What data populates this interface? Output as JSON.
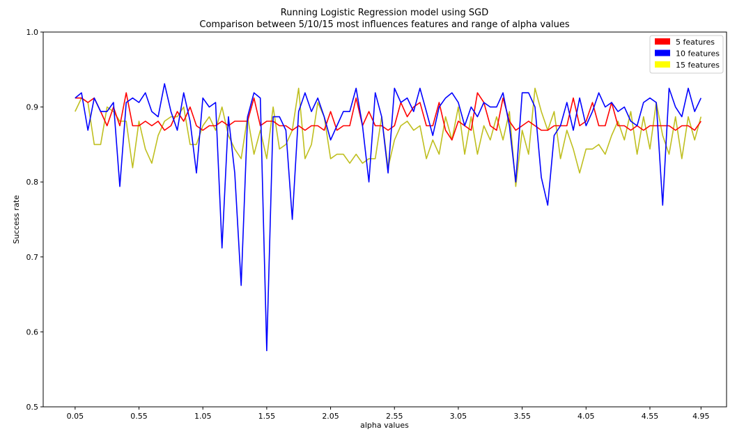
{
  "chart_data": {
    "type": "line",
    "title": "Running Logistic Regression model using SGD",
    "subtitle": "Comparison between 5/10/15 most influences features and range of alpha values",
    "xlabel": "alpha values",
    "ylabel": "Success rate",
    "xlim": [
      -0.2,
      5.15
    ],
    "ylim": [
      0.5,
      1.0
    ],
    "x_ticks": [
      0.05,
      0.55,
      1.05,
      1.55,
      2.05,
      2.55,
      3.05,
      3.55,
      4.05,
      4.55,
      4.95
    ],
    "x_tick_labels": [
      "0.05",
      "0.55",
      "1.05",
      "1.55",
      "2.05",
      "2.55",
      "3.05",
      "3.55",
      "4.05",
      "4.55",
      "4.95"
    ],
    "y_ticks": [
      0.5,
      0.6,
      0.7,
      0.8,
      0.9,
      1.0
    ],
    "y_tick_labels": [
      "0.5",
      "0.6",
      "0.7",
      "0.8",
      "0.9",
      "1.0"
    ],
    "legend_position": "top-right",
    "x": [
      0.05,
      0.1,
      0.15,
      0.2,
      0.25,
      0.3,
      0.35,
      0.4,
      0.45,
      0.5,
      0.55,
      0.6,
      0.65,
      0.7,
      0.75,
      0.8,
      0.85,
      0.9,
      0.95,
      1.0,
      1.05,
      1.1,
      1.15,
      1.2,
      1.25,
      1.3,
      1.35,
      1.4,
      1.45,
      1.5,
      1.55,
      1.6,
      1.65,
      1.7,
      1.75,
      1.8,
      1.85,
      1.9,
      1.95,
      2.0,
      2.05,
      2.1,
      2.15,
      2.2,
      2.25,
      2.3,
      2.35,
      2.4,
      2.45,
      2.5,
      2.55,
      2.6,
      2.65,
      2.7,
      2.75,
      2.8,
      2.85,
      2.9,
      2.95,
      3.0,
      3.05,
      3.1,
      3.15,
      3.2,
      3.25,
      3.3,
      3.35,
      3.4,
      3.45,
      3.5,
      3.55,
      3.6,
      3.65,
      3.7,
      3.75,
      3.8,
      3.85,
      3.9,
      3.95,
      4.0,
      4.05,
      4.1,
      4.15,
      4.2,
      4.25,
      4.3,
      4.35,
      4.4,
      4.45,
      4.5,
      4.55,
      4.6,
      4.65,
      4.7,
      4.75,
      4.8,
      4.85,
      4.9,
      4.95
    ],
    "series": [
      {
        "name": "5 features",
        "color": "#ff0000",
        "values": [
          0.912,
          0.912,
          0.906,
          0.912,
          0.894,
          0.875,
          0.9,
          0.875,
          0.919,
          0.875,
          0.875,
          0.881,
          0.875,
          0.881,
          0.869,
          0.875,
          0.894,
          0.881,
          0.9,
          0.875,
          0.869,
          0.875,
          0.875,
          0.881,
          0.875,
          0.881,
          0.881,
          0.881,
          0.912,
          0.875,
          0.881,
          0.881,
          0.875,
          0.875,
          0.869,
          0.875,
          0.869,
          0.875,
          0.875,
          0.869,
          0.894,
          0.869,
          0.875,
          0.875,
          0.912,
          0.875,
          0.894,
          0.875,
          0.875,
          0.869,
          0.875,
          0.906,
          0.887,
          0.9,
          0.906,
          0.875,
          0.875,
          0.906,
          0.869,
          0.856,
          0.881,
          0.875,
          0.869,
          0.919,
          0.906,
          0.875,
          0.869,
          0.912,
          0.881,
          0.869,
          0.875,
          0.881,
          0.875,
          0.869,
          0.869,
          0.875,
          0.875,
          0.875,
          0.912,
          0.875,
          0.881,
          0.906,
          0.875,
          0.875,
          0.906,
          0.875,
          0.875,
          0.869,
          0.875,
          0.869,
          0.875,
          0.875,
          0.875,
          0.875,
          0.869,
          0.875,
          0.875,
          0.869,
          0.881
        ]
      },
      {
        "name": "10 features",
        "color": "#0000ff",
        "values": [
          0.912,
          0.919,
          0.869,
          0.912,
          0.894,
          0.894,
          0.906,
          0.794,
          0.906,
          0.912,
          0.906,
          0.919,
          0.894,
          0.887,
          0.931,
          0.894,
          0.869,
          0.919,
          0.881,
          0.812,
          0.912,
          0.9,
          0.906,
          0.712,
          0.887,
          0.812,
          0.662,
          0.887,
          0.919,
          0.912,
          0.575,
          0.887,
          0.887,
          0.869,
          0.75,
          0.894,
          0.919,
          0.894,
          0.912,
          0.887,
          0.856,
          0.875,
          0.894,
          0.894,
          0.925,
          0.875,
          0.8,
          0.919,
          0.887,
          0.812,
          0.925,
          0.906,
          0.912,
          0.894,
          0.925,
          0.894,
          0.862,
          0.9,
          0.912,
          0.919,
          0.906,
          0.875,
          0.9,
          0.887,
          0.906,
          0.9,
          0.9,
          0.919,
          0.875,
          0.8,
          0.919,
          0.919,
          0.9,
          0.806,
          0.769,
          0.862,
          0.875,
          0.906,
          0.869,
          0.912,
          0.875,
          0.894,
          0.919,
          0.9,
          0.906,
          0.894,
          0.9,
          0.881,
          0.875,
          0.906,
          0.912,
          0.906,
          0.769,
          0.925,
          0.9,
          0.887,
          0.925,
          0.894,
          0.912
        ]
      },
      {
        "name": "15 features",
        "color": "#bfbf1f",
        "legend_color": "#ffff00",
        "values": [
          0.894,
          0.912,
          0.906,
          0.85,
          0.85,
          0.9,
          0.894,
          0.881,
          0.881,
          0.819,
          0.881,
          0.844,
          0.825,
          0.862,
          0.881,
          0.887,
          0.887,
          0.9,
          0.85,
          0.85,
          0.875,
          0.887,
          0.869,
          0.9,
          0.862,
          0.844,
          0.831,
          0.887,
          0.837,
          0.869,
          0.831,
          0.9,
          0.844,
          0.85,
          0.869,
          0.925,
          0.831,
          0.85,
          0.906,
          0.887,
          0.831,
          0.837,
          0.837,
          0.825,
          0.837,
          0.825,
          0.831,
          0.831,
          0.887,
          0.819,
          0.856,
          0.875,
          0.881,
          0.869,
          0.875,
          0.831,
          0.856,
          0.837,
          0.887,
          0.856,
          0.9,
          0.837,
          0.887,
          0.837,
          0.875,
          0.856,
          0.887,
          0.856,
          0.894,
          0.794,
          0.869,
          0.837,
          0.925,
          0.894,
          0.869,
          0.894,
          0.831,
          0.869,
          0.844,
          0.812,
          0.844,
          0.844,
          0.85,
          0.837,
          0.862,
          0.881,
          0.856,
          0.894,
          0.837,
          0.887,
          0.844,
          0.906,
          0.862,
          0.837,
          0.887,
          0.831,
          0.887,
          0.856,
          0.887
        ]
      }
    ]
  }
}
